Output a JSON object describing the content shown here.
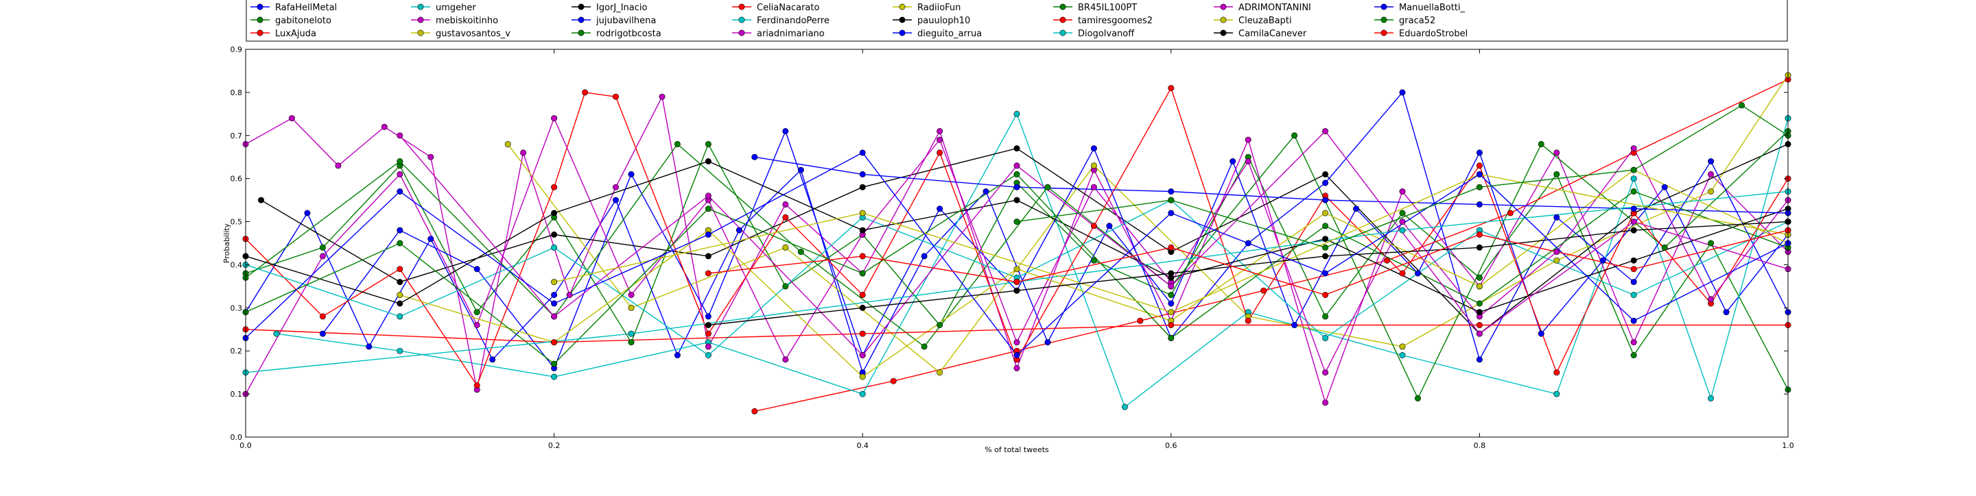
{
  "chart_data": {
    "type": "line",
    "title": "",
    "xlabel": "% of total tweets",
    "ylabel": "Probability",
    "xlim": [
      0.0,
      1.0
    ],
    "ylim": [
      0.0,
      0.9
    ],
    "xticks": [
      "0.0",
      "0.2",
      "0.4",
      "0.6",
      "0.8",
      "1.0"
    ],
    "yticks": [
      "0.0",
      "0.1",
      "0.2",
      "0.3",
      "0.4",
      "0.5",
      "0.6",
      "0.7",
      "0.8",
      "0.9"
    ],
    "grid": false,
    "legend_placement": "top",
    "legend_columns": 10,
    "series": [
      {
        "name": "RafaHellMetal",
        "color": "#0000ff",
        "x": [
          0.0,
          0.04,
          0.08,
          0.12,
          0.16,
          0.2,
          0.24,
          0.28,
          0.32,
          0.36,
          0.4,
          0.44,
          0.48,
          0.52,
          0.56,
          0.6,
          0.64,
          0.68,
          0.72,
          0.76,
          0.8,
          0.84,
          0.88,
          0.92,
          0.96,
          1.0
        ],
        "values": [
          0.29,
          0.52,
          0.21,
          0.46,
          0.18,
          0.33,
          0.55,
          0.19,
          0.48,
          0.62,
          0.15,
          0.42,
          0.57,
          0.22,
          0.49,
          0.31,
          0.64,
          0.26,
          0.53,
          0.38,
          0.66,
          0.24,
          0.41,
          0.58,
          0.29,
          0.47
        ]
      },
      {
        "name": "gabitoneloto",
        "color": "#008000",
        "x": [
          0.0,
          0.05,
          0.1,
          0.15,
          0.2,
          0.25,
          0.3,
          0.35,
          0.4,
          0.45,
          0.5,
          0.55,
          0.6,
          0.65,
          0.7,
          0.75,
          0.8,
          0.85,
          0.9,
          0.95,
          1.0
        ],
        "values": [
          0.38,
          0.44,
          0.63,
          0.29,
          0.51,
          0.22,
          0.68,
          0.35,
          0.47,
          0.26,
          0.59,
          0.41,
          0.33,
          0.65,
          0.28,
          0.52,
          0.37,
          0.61,
          0.19,
          0.45,
          0.11
        ]
      },
      {
        "name": "LuxAjuda",
        "color": "#ff0000",
        "x": [
          0.33,
          0.42,
          0.5,
          0.58,
          0.66,
          0.74,
          0.82,
          0.9,
          1.0
        ],
        "values": [
          0.06,
          0.13,
          0.2,
          0.27,
          0.34,
          0.41,
          0.52,
          0.66,
          0.83
        ]
      },
      {
        "name": "umgeher",
        "color": "#00bfbf",
        "x": [
          0.02,
          0.1,
          0.2,
          0.3,
          0.4,
          0.5,
          0.57,
          0.65,
          0.75,
          0.85,
          0.9,
          0.95,
          1.0
        ],
        "values": [
          0.24,
          0.2,
          0.14,
          0.22,
          0.1,
          0.75,
          0.07,
          0.29,
          0.19,
          0.1,
          0.6,
          0.09,
          0.74
        ]
      },
      {
        "name": "mebiskoitinho",
        "color": "#bf00bf",
        "x": [
          0.0,
          0.03,
          0.06,
          0.09,
          0.12,
          0.15,
          0.18,
          0.21,
          0.24,
          0.27,
          0.3,
          0.35,
          0.4,
          0.45,
          0.5,
          0.55,
          0.6,
          0.65,
          0.7,
          0.75,
          0.8,
          0.85,
          0.9,
          0.95,
          1.0
        ],
        "values": [
          0.68,
          0.74,
          0.63,
          0.72,
          0.65,
          0.11,
          0.66,
          0.33,
          0.58,
          0.79,
          0.21,
          0.54,
          0.38,
          0.71,
          0.16,
          0.62,
          0.27,
          0.69,
          0.08,
          0.57,
          0.35,
          0.66,
          0.22,
          0.61,
          0.43
        ]
      },
      {
        "name": "gustavosantos_v",
        "color": "#bfbf00",
        "x": [
          0.17,
          0.25,
          0.35,
          0.45,
          0.55,
          0.65,
          0.75,
          0.85,
          0.95,
          1.0
        ],
        "values": [
          0.68,
          0.3,
          0.44,
          0.15,
          0.63,
          0.28,
          0.21,
          0.41,
          0.57,
          0.84
        ]
      },
      {
        "name": "IgorJ_Inacio",
        "color": "#000000",
        "x": [
          0.01,
          0.1,
          0.2,
          0.3,
          0.4,
          0.5,
          0.6,
          0.7,
          0.8,
          0.9,
          1.0
        ],
        "values": [
          0.55,
          0.36,
          0.47,
          0.42,
          0.58,
          0.67,
          0.43,
          0.61,
          0.24,
          0.52,
          0.68
        ]
      },
      {
        "name": "jujubavilhena",
        "color": "#0000ff",
        "x": [
          0.05,
          0.1,
          0.15,
          0.2,
          0.25,
          0.3,
          0.35,
          0.4,
          0.45,
          0.5,
          0.55,
          0.6,
          0.65,
          0.7,
          0.75,
          0.8,
          0.85,
          0.9,
          0.95,
          1.0
        ],
        "values": [
          0.24,
          0.48,
          0.39,
          0.16,
          0.61,
          0.28,
          0.71,
          0.19,
          0.53,
          0.34,
          0.67,
          0.23,
          0.45,
          0.59,
          0.8,
          0.18,
          0.51,
          0.36,
          0.64,
          0.29
        ]
      },
      {
        "name": "rodrigotbcosta",
        "color": "#008000",
        "x": [
          0.0,
          0.1,
          0.2,
          0.28,
          0.36,
          0.44,
          0.52,
          0.6,
          0.68,
          0.76,
          0.84,
          0.92,
          1.0
        ],
        "values": [
          0.37,
          0.64,
          0.28,
          0.68,
          0.43,
          0.21,
          0.58,
          0.35,
          0.7,
          0.09,
          0.68,
          0.44,
          0.71
        ]
      },
      {
        "name": "CeliaNacarato",
        "color": "#ff0000",
        "x": [
          0.0,
          0.05,
          0.1,
          0.15,
          0.2,
          0.22,
          0.24,
          0.3,
          0.35,
          0.4,
          0.45,
          0.5,
          0.55,
          0.6,
          0.65,
          0.7,
          0.75,
          0.8,
          0.85,
          0.9,
          0.95,
          1.0
        ],
        "values": [
          0.46,
          0.28,
          0.39,
          0.12,
          0.58,
          0.8,
          0.79,
          0.24,
          0.51,
          0.33,
          0.66,
          0.18,
          0.49,
          0.81,
          0.27,
          0.56,
          0.38,
          0.63,
          0.15,
          0.52,
          0.31,
          0.6
        ]
      },
      {
        "name": "FerdinandoPerre",
        "color": "#00bfbf",
        "x": [
          0.0,
          0.1,
          0.2,
          0.3,
          0.4,
          0.5,
          0.6,
          0.7,
          0.8,
          0.9,
          1.0
        ],
        "values": [
          0.4,
          0.28,
          0.44,
          0.19,
          0.51,
          0.37,
          0.55,
          0.23,
          0.48,
          0.33,
          0.5
        ]
      },
      {
        "name": "ariadnimariano",
        "color": "#bf00bf",
        "x": [
          0.0,
          0.05,
          0.1,
          0.15,
          0.2,
          0.25,
          0.3,
          0.35,
          0.4,
          0.45,
          0.5,
          0.55,
          0.6,
          0.65,
          0.7,
          0.75,
          0.8,
          0.85,
          0.9,
          0.95,
          1.0
        ],
        "values": [
          0.1,
          0.42,
          0.61,
          0.26,
          0.74,
          0.33,
          0.55,
          0.18,
          0.47,
          0.69,
          0.22,
          0.58,
          0.36,
          0.64,
          0.15,
          0.5,
          0.28,
          0.43,
          0.67,
          0.32,
          0.55
        ]
      },
      {
        "name": "RadiioFun",
        "color": "#bfbf00",
        "x": [
          0.1,
          0.2,
          0.3,
          0.4,
          0.5,
          0.6,
          0.7,
          0.8,
          0.9,
          1.0
        ],
        "values": [
          0.33,
          0.22,
          0.48,
          0.14,
          0.39,
          0.27,
          0.52,
          0.35,
          0.62,
          0.45
        ]
      },
      {
        "name": "pauuloph10",
        "color": "#000000",
        "x": [
          0.0,
          0.1,
          0.2,
          0.3,
          0.4,
          0.5,
          0.6,
          0.7,
          0.8,
          0.9,
          1.0
        ],
        "values": [
          0.42,
          0.31,
          0.52,
          0.64,
          0.48,
          0.55,
          0.37,
          0.46,
          0.29,
          0.41,
          0.53
        ]
      },
      {
        "name": "dieguito_arrua",
        "color": "#0000ff",
        "x": [
          0.33,
          0.4,
          0.5,
          0.6,
          0.7,
          0.8,
          0.9,
          1.0
        ],
        "values": [
          0.65,
          0.61,
          0.58,
          0.57,
          0.55,
          0.54,
          0.53,
          0.52
        ]
      },
      {
        "name": "BR45IL100PT",
        "color": "#008000",
        "x": [
          0.0,
          0.1,
          0.2,
          0.3,
          0.4,
          0.5,
          0.6,
          0.7,
          0.8,
          0.9,
          1.0
        ],
        "values": [
          0.29,
          0.45,
          0.17,
          0.53,
          0.38,
          0.61,
          0.23,
          0.49,
          0.31,
          0.57,
          0.44
        ]
      },
      {
        "name": "tamiresgoomes2",
        "color": "#ff0000",
        "x": [
          0.0,
          0.2,
          0.4,
          0.6,
          0.8,
          1.0
        ],
        "values": [
          0.25,
          0.22,
          0.24,
          0.26,
          0.26,
          0.26
        ]
      },
      {
        "name": "Diogolvanoff",
        "color": "#00bfbf",
        "x": [
          0.0,
          0.25,
          0.5,
          0.75,
          1.0
        ],
        "values": [
          0.15,
          0.24,
          0.36,
          0.48,
          0.57
        ]
      },
      {
        "name": "ADRIMONTANINI",
        "color": "#bf00bf",
        "x": [
          0.1,
          0.2,
          0.3,
          0.4,
          0.5,
          0.6,
          0.7,
          0.8,
          0.9,
          1.0
        ],
        "values": [
          0.7,
          0.28,
          0.56,
          0.19,
          0.63,
          0.35,
          0.71,
          0.24,
          0.5,
          0.39
        ]
      },
      {
        "name": "CleuzaBapti",
        "color": "#bfbf00",
        "x": [
          0.2,
          0.4,
          0.6,
          0.8,
          1.0
        ],
        "values": [
          0.36,
          0.52,
          0.29,
          0.61,
          0.47
        ]
      },
      {
        "name": "CamilaCanever",
        "color": "#000000",
        "x": [
          0.3,
          0.4,
          0.5,
          0.6,
          0.7,
          0.8,
          0.9,
          1.0
        ],
        "values": [
          0.26,
          0.3,
          0.34,
          0.38,
          0.42,
          0.44,
          0.48,
          0.5
        ]
      },
      {
        "name": "ManuellaBotti_",
        "color": "#0000ff",
        "x": [
          0.0,
          0.1,
          0.2,
          0.3,
          0.4,
          0.5,
          0.6,
          0.7,
          0.8,
          0.9,
          1.0
        ],
        "values": [
          0.23,
          0.57,
          0.31,
          0.47,
          0.66,
          0.19,
          0.52,
          0.38,
          0.61,
          0.27,
          0.45
        ]
      },
      {
        "name": "graca52",
        "color": "#008000",
        "x": [
          0.5,
          0.6,
          0.7,
          0.8,
          0.9,
          0.97,
          1.0
        ],
        "values": [
          0.5,
          0.55,
          0.44,
          0.58,
          0.62,
          0.77,
          0.7
        ]
      },
      {
        "name": "EduardoStrobel",
        "color": "#ff0000",
        "x": [
          0.3,
          0.4,
          0.5,
          0.6,
          0.7,
          0.8,
          0.9,
          1.0
        ],
        "values": [
          0.38,
          0.42,
          0.36,
          0.44,
          0.33,
          0.47,
          0.39,
          0.48
        ]
      }
    ]
  }
}
